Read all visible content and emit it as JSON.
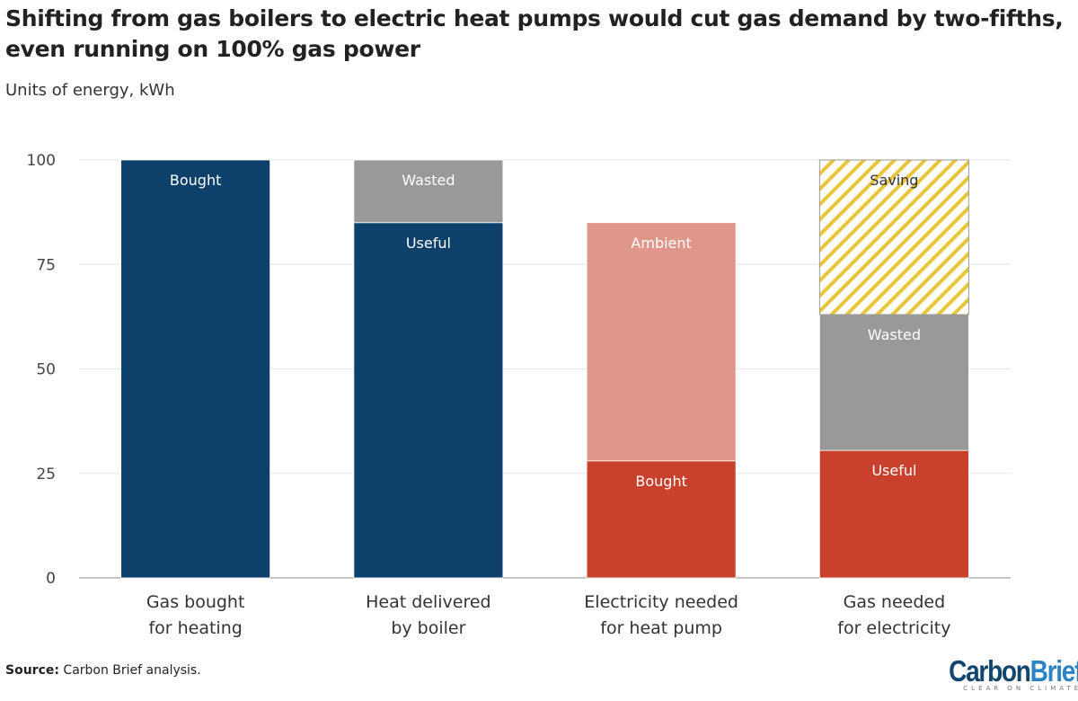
{
  "chart_data": {
    "type": "bar",
    "stacked": true,
    "title": "Shifting from gas boilers to electric heat pumps would cut gas demand by two-fifths, even running on 100% gas power",
    "subtitle": "Units of energy, kWh",
    "ylim": [
      0,
      100
    ],
    "yticks": [
      0,
      25,
      50,
      75,
      100
    ],
    "grid": true,
    "categories": [
      [
        "Gas bought",
        "for heating"
      ],
      [
        "Heat delivered",
        "by boiler"
      ],
      [
        "Electricity needed",
        "for heat pump"
      ],
      [
        "Gas needed",
        "for electricity"
      ]
    ],
    "bars": [
      [
        {
          "label": "Bought",
          "value": 100,
          "color": "#0d416b"
        }
      ],
      [
        {
          "label": "Useful",
          "value": 85,
          "color": "#0d416b"
        },
        {
          "label": "Wasted",
          "value": 15,
          "color": "#999999"
        }
      ],
      [
        {
          "label": "Bought",
          "value": 28,
          "color": "#c9402c"
        },
        {
          "label": "Ambient",
          "value": 57,
          "color": "#e0968a"
        }
      ],
      [
        {
          "label": "Useful",
          "value": 30.5,
          "color": "#c9402c"
        },
        {
          "label": "Wasted",
          "value": 32.5,
          "color": "#999999"
        },
        {
          "label": "Saving",
          "value": 37,
          "color": "#e8c53a",
          "pattern": "hatched"
        }
      ]
    ]
  },
  "source_label": "Source:",
  "source_text": " Carbon Brief analysis.",
  "logo": {
    "part1": "Carbon",
    "part2": "Brief",
    "tagline": "CLEAR ON CLIMATE"
  }
}
